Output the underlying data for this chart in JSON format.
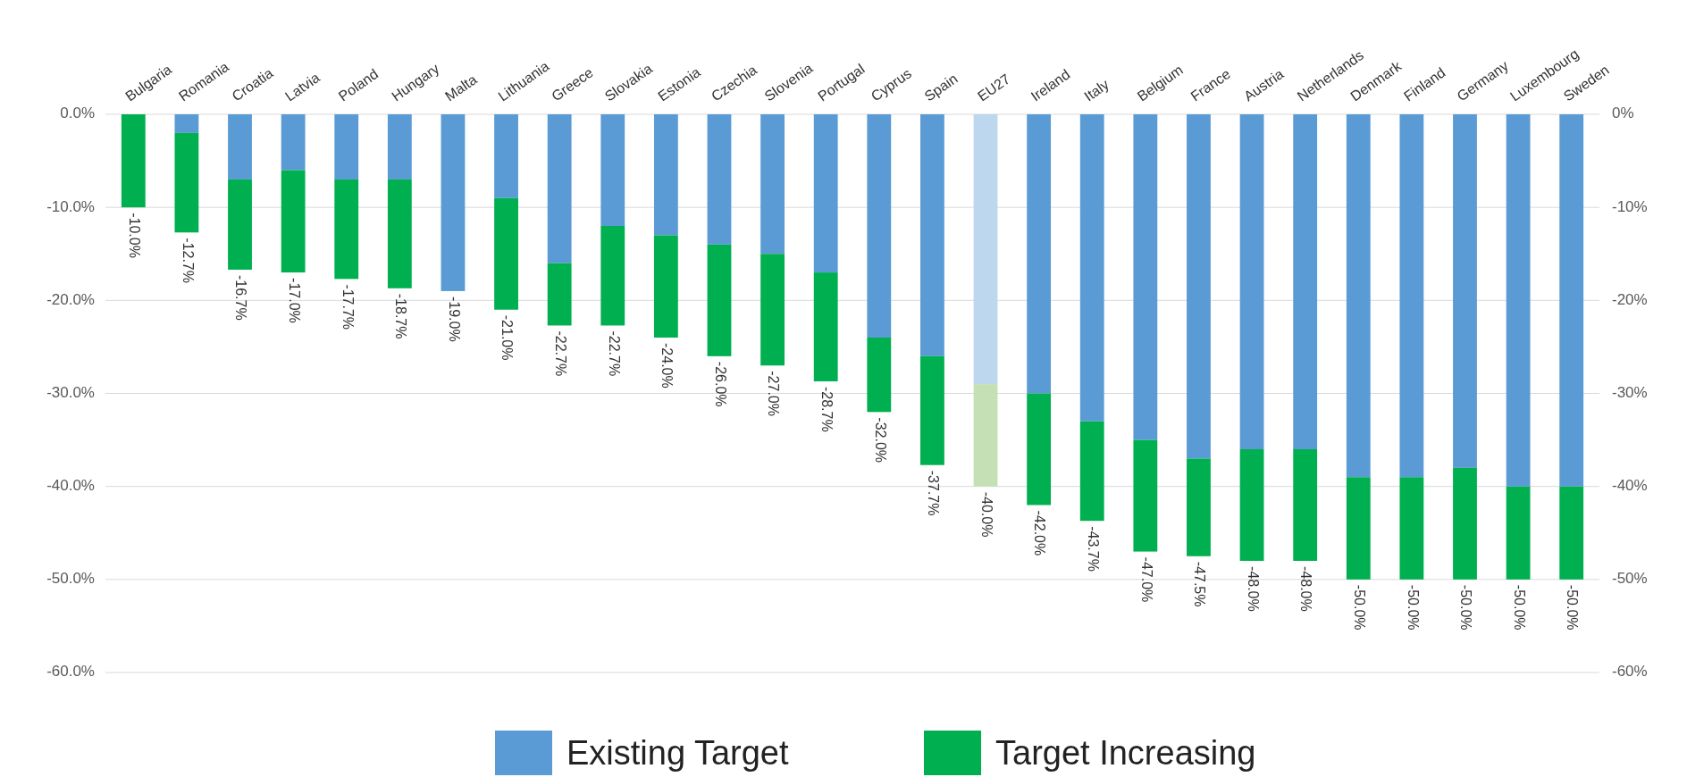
{
  "chart_data": {
    "type": "bar",
    "stacked": true,
    "categories": [
      "Bulgaria",
      "Romania",
      "Croatia",
      "Latvia",
      "Poland",
      "Hungary",
      "Malta",
      "Lithuania",
      "Greece",
      "Slovakia",
      "Estonia",
      "Czechia",
      "Slovenia",
      "Portugal",
      "Cyprus",
      "Spain",
      "EU27",
      "Ireland",
      "Italy",
      "Belgium",
      "France",
      "Austria",
      "Netherlands",
      "Denmark",
      "Finland",
      "Germany",
      "Luxembourg",
      "Sweden"
    ],
    "series": [
      {
        "name": "Existing Target",
        "color": "#5b9bd5",
        "colors": [
          "#5b9bd5",
          "#5b9bd5",
          "#5b9bd5",
          "#5b9bd5",
          "#5b9bd5",
          "#5b9bd5",
          "#5b9bd5",
          "#5b9bd5",
          "#5b9bd5",
          "#5b9bd5",
          "#5b9bd5",
          "#5b9bd5",
          "#5b9bd5",
          "#5b9bd5",
          "#5b9bd5",
          "#5b9bd5",
          "#bdd7ee",
          "#5b9bd5",
          "#5b9bd5",
          "#5b9bd5",
          "#5b9bd5",
          "#5b9bd5",
          "#5b9bd5",
          "#5b9bd5",
          "#5b9bd5",
          "#5b9bd5",
          "#5b9bd5",
          "#5b9bd5"
        ],
        "values": [
          0,
          -2,
          -7,
          -6,
          -7,
          -7,
          -19,
          -9,
          -16,
          -12,
          -13,
          -14,
          -15,
          -17,
          -24,
          -26,
          -29,
          -30,
          -33,
          -35,
          -37,
          -36,
          -36,
          -39,
          -39,
          -38,
          -40,
          -40
        ]
      },
      {
        "name": "Target Increasing",
        "color": "#00b050",
        "colors": [
          "#00b050",
          "#00b050",
          "#00b050",
          "#00b050",
          "#00b050",
          "#00b050",
          "#00b050",
          "#00b050",
          "#00b050",
          "#00b050",
          "#00b050",
          "#00b050",
          "#00b050",
          "#00b050",
          "#00b050",
          "#00b050",
          "#c5e0b4",
          "#00b050",
          "#00b050",
          "#00b050",
          "#00b050",
          "#00b050",
          "#00b050",
          "#00b050",
          "#00b050",
          "#00b050",
          "#00b050",
          "#00b050"
        ],
        "values": [
          -10,
          -10.7,
          -9.7,
          -11,
          -10.7,
          -11.7,
          0,
          -12,
          -6.7,
          -10.7,
          -11,
          -12,
          -12,
          -11.7,
          -8,
          -11.7,
          -11,
          -12,
          -10.7,
          -12,
          -10.5,
          -12,
          -12,
          -11,
          -11,
          -12,
          -10,
          -10
        ]
      }
    ],
    "totals": [
      "-10.0%",
      "-12.7%",
      "-16.7%",
      "-17.0%",
      "-17.7%",
      "-18.7%",
      "-19.0%",
      "-21.0%",
      "-22.7%",
      "-22.7%",
      "-24.0%",
      "-26.0%",
      "-27.0%",
      "-28.7%",
      "-32.0%",
      "-37.7%",
      "-40.0%",
      "-42.0%",
      "-43.7%",
      "-47.0%",
      "-47.5%",
      "-48.0%",
      "-48.0%",
      "-50.0%",
      "-50.0%",
      "-50.0%",
      "-50.0%",
      "-50.0%"
    ],
    "ylim": [
      -60,
      0
    ],
    "yticks": [
      {
        "value": 0,
        "label": "0.0%"
      },
      {
        "value": -10,
        "label": "-10.0%"
      },
      {
        "value": -20,
        "label": "-20.0%"
      },
      {
        "value": -30,
        "label": "-30.0%"
      },
      {
        "value": -40,
        "label": "-40.0%"
      },
      {
        "value": -50,
        "label": "-50.0%"
      },
      {
        "value": -60,
        "label": "-60.0%"
      }
    ],
    "y2lim": [
      -60,
      0
    ],
    "y2ticks": [
      {
        "value": 0,
        "label": "0%"
      },
      {
        "value": -10,
        "label": "-10%"
      },
      {
        "value": -20,
        "label": "-20%"
      },
      {
        "value": -30,
        "label": "-30%"
      },
      {
        "value": -40,
        "label": "-40%"
      },
      {
        "value": -50,
        "label": "-50%"
      },
      {
        "value": -60,
        "label": "-60%"
      }
    ],
    "grid": "y",
    "legend": "bottom"
  }
}
